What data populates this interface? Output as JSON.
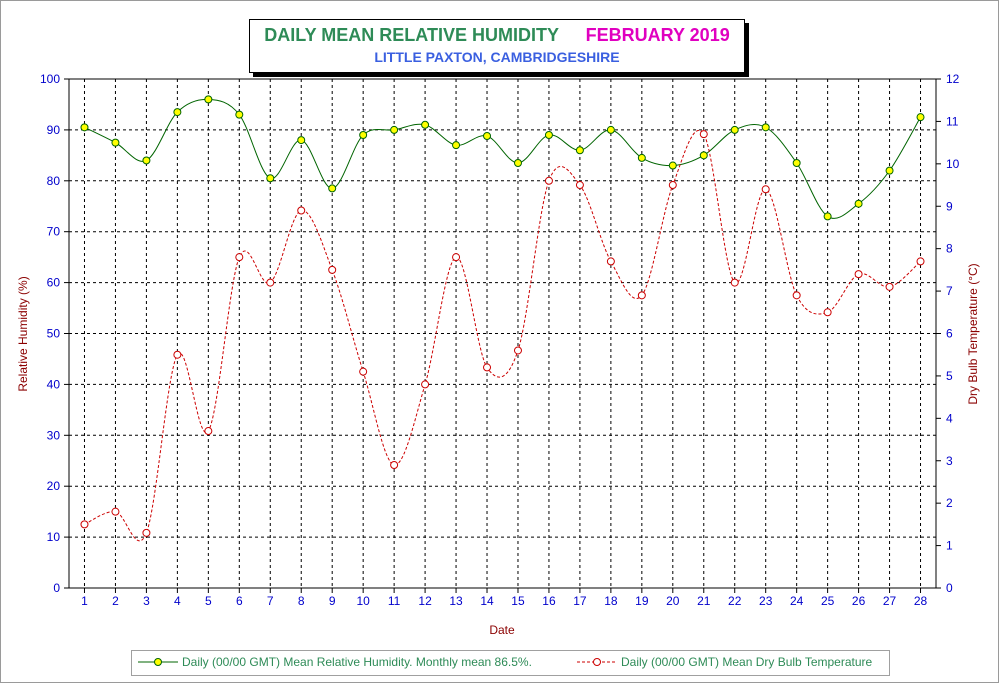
{
  "chart_data": {
    "type": "line",
    "title": "DAILY MEAN RELATIVE HUMIDITY",
    "title_month": "FEBRUARY 2019",
    "subtitle": "LITTLE PAXTON, CAMBRIDGESHIRE",
    "xlabel": "Date",
    "ylabel_left": "Relative Humidity (%)",
    "ylabel_right": "Dry Bulb Temperature (°C)",
    "x": [
      1,
      2,
      3,
      4,
      5,
      6,
      7,
      8,
      9,
      10,
      11,
      12,
      13,
      14,
      15,
      16,
      17,
      18,
      19,
      20,
      21,
      22,
      23,
      24,
      25,
      26,
      27,
      28
    ],
    "ylim_left": [
      0,
      100
    ],
    "ylim_right": [
      0,
      12
    ],
    "y_ticks_left": [
      0,
      10,
      20,
      30,
      40,
      50,
      60,
      70,
      80,
      90,
      100
    ],
    "y_ticks_right": [
      0,
      1,
      2,
      3,
      4,
      5,
      6,
      7,
      8,
      9,
      10,
      11,
      12
    ],
    "grid": true,
    "legend_position": "bottom",
    "series": [
      {
        "name": "Daily (00/00 GMT) Mean Relative Humidity. Monthly mean 86.5%.",
        "axis": "left",
        "color": "#006400",
        "marker_fill": "#ffff00",
        "style": "solid",
        "values": [
          90.5,
          87.5,
          84,
          93.5,
          96,
          93,
          80.5,
          88,
          78.5,
          89,
          90,
          91,
          87,
          88.8,
          83.5,
          89,
          86,
          90,
          84.5,
          83,
          85,
          90,
          90.5,
          83.5,
          73,
          75.5,
          82,
          92.5
        ]
      },
      {
        "name": "Daily (00/00 GMT) Mean Dry Bulb Temperature",
        "axis": "right",
        "color": "#cc0000",
        "marker_fill": "none",
        "style": "dashed",
        "values": [
          1.5,
          1.8,
          1.3,
          5.5,
          3.7,
          7.8,
          7.2,
          8.9,
          7.5,
          5.1,
          2.9,
          4.8,
          7.8,
          5.2,
          5.6,
          9.6,
          9.5,
          7.7,
          6.9,
          9.5,
          10.7,
          7.2,
          9.4,
          6.9,
          6.5,
          7.4,
          7.1,
          7.7
        ]
      }
    ]
  }
}
